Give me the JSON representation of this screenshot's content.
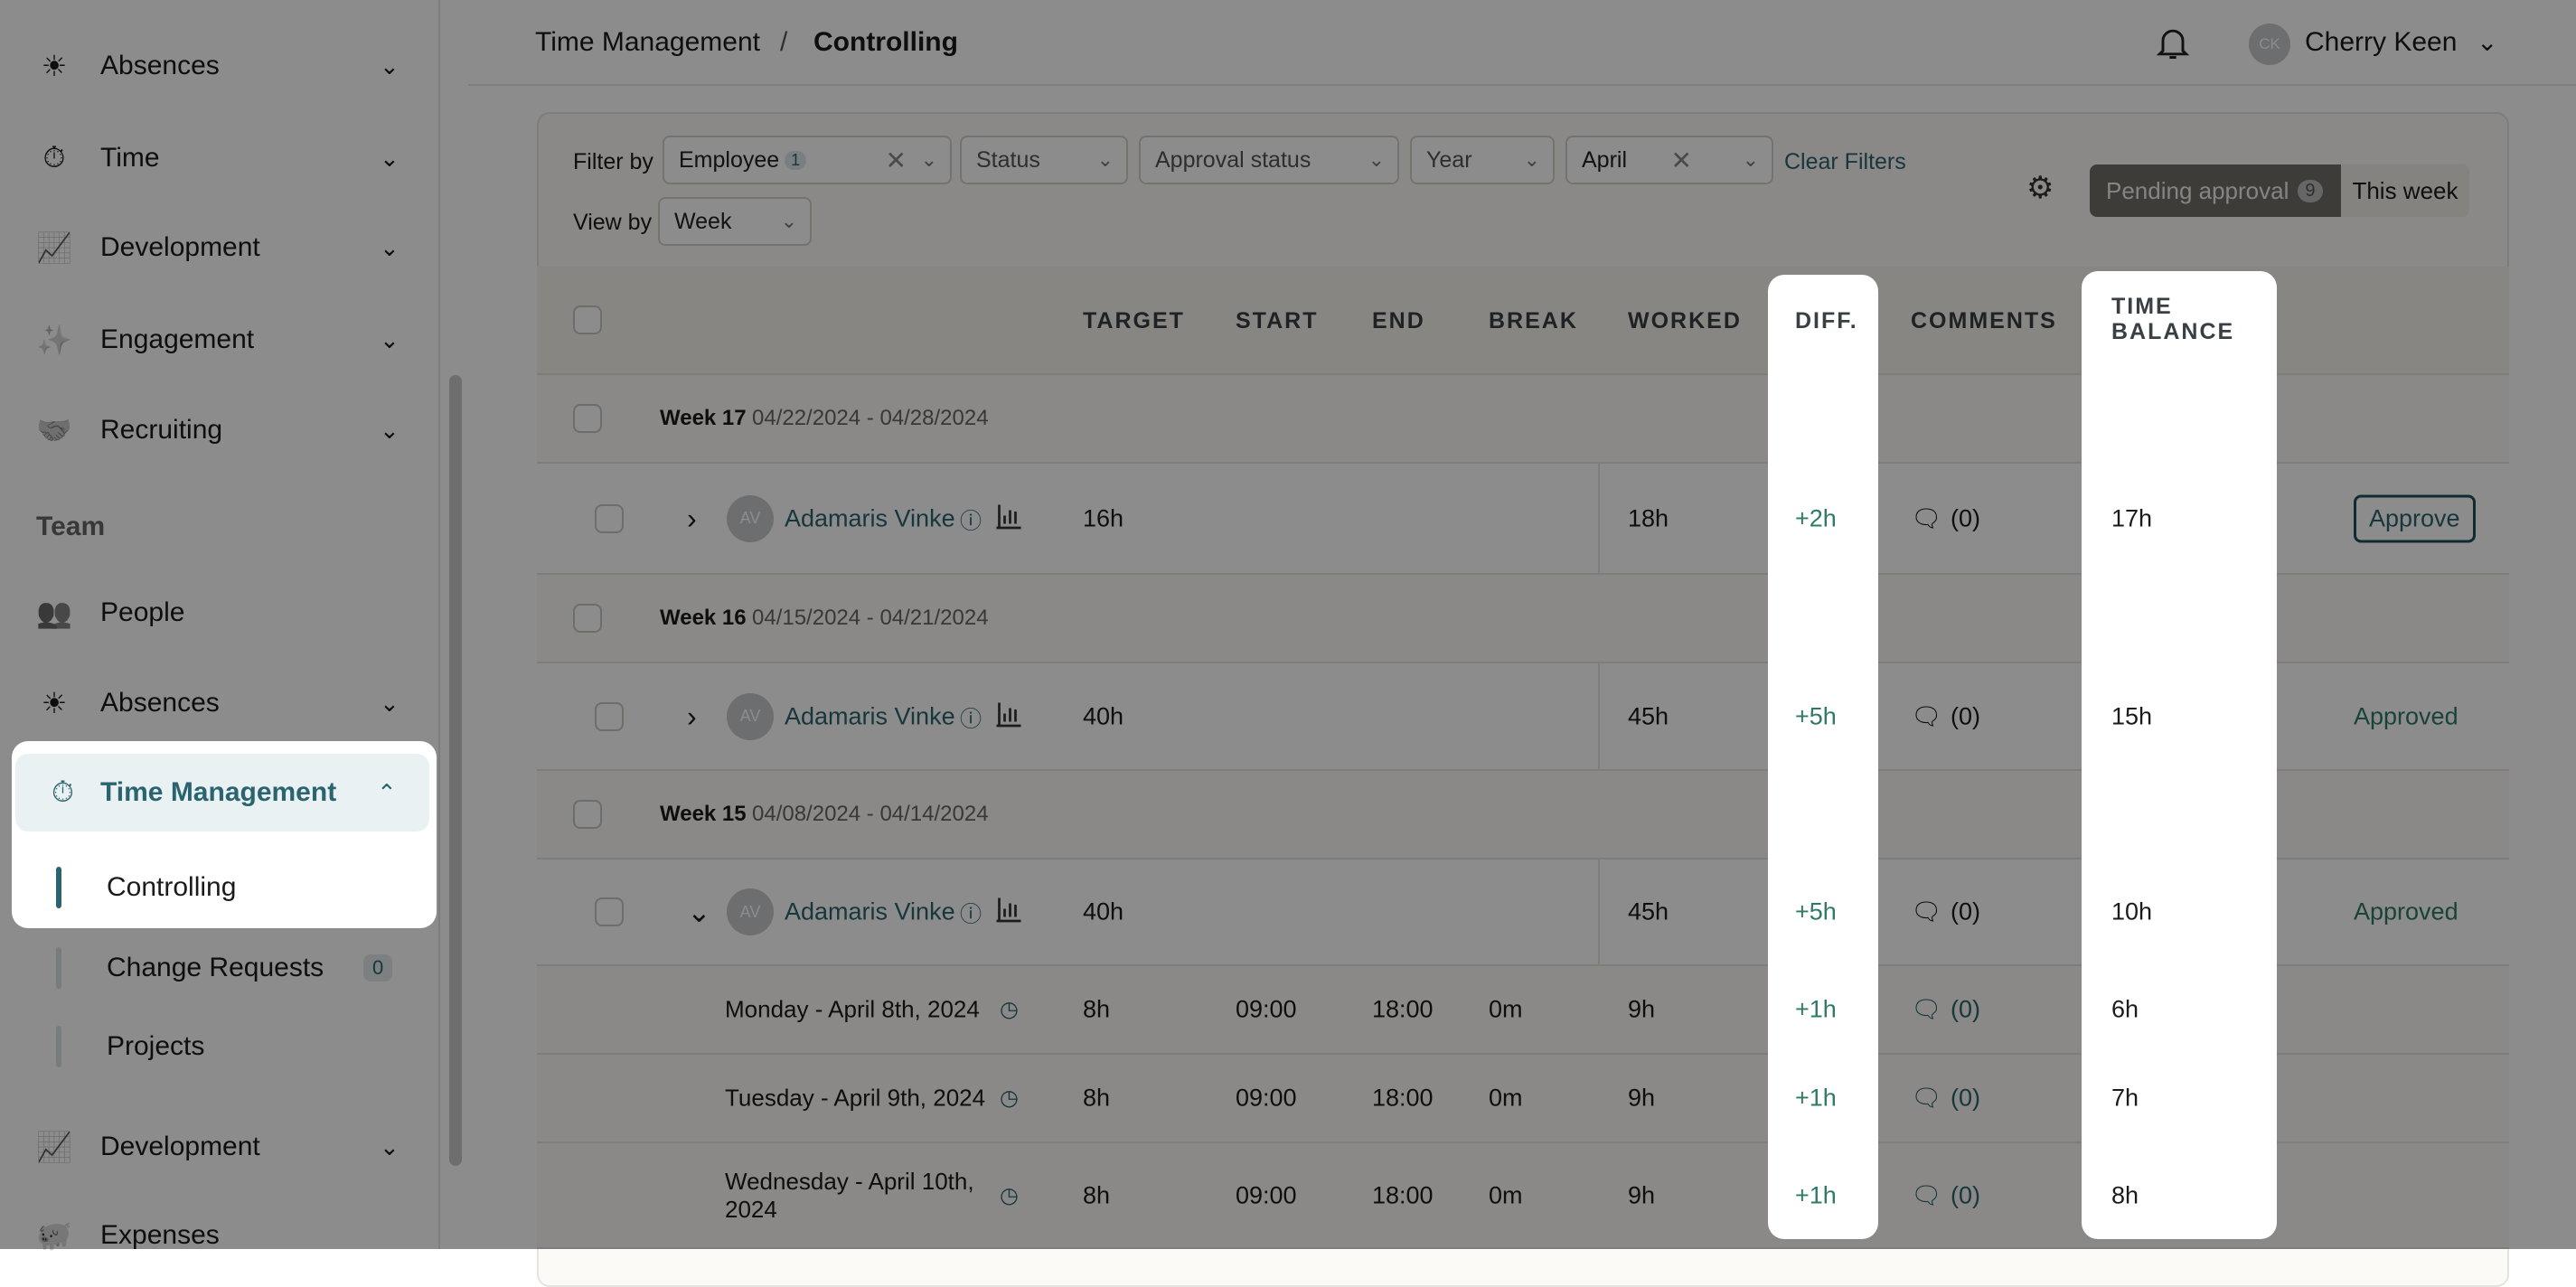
{
  "sidebar": {
    "top_items": [
      {
        "label": "Absences",
        "icon": "sun-horizon-icon"
      },
      {
        "label": "Time",
        "icon": "stopwatch-icon"
      },
      {
        "label": "Development",
        "icon": "chart-line-icon"
      },
      {
        "label": "Engagement",
        "icon": "sparkle-icon"
      },
      {
        "label": "Recruiting",
        "icon": "handshake-icon"
      }
    ],
    "section": "Team",
    "team_items": [
      {
        "label": "People",
        "icon": "people-icon"
      },
      {
        "label": "Absences",
        "icon": "sun-horizon-icon"
      }
    ],
    "active": {
      "label": "Time Management",
      "icon": "stopwatch-icon"
    },
    "sub_items": [
      {
        "label": "Controlling"
      },
      {
        "label": "Change Requests",
        "badge": "0"
      },
      {
        "label": "Projects"
      }
    ],
    "bottom_items": [
      {
        "label": "Development",
        "icon": "chart-line-icon"
      },
      {
        "label": "Expenses",
        "icon": "piggy-bank-icon"
      }
    ]
  },
  "header": {
    "crumb1": "Time Management",
    "sep": "/",
    "crumb2": "Controlling",
    "user_initials": "CK",
    "user_name": "Cherry Keen"
  },
  "filters": {
    "filter_by": "Filter by",
    "employee": "Employee",
    "employee_count": "1",
    "status": "Status",
    "approval": "Approval status",
    "year": "Year",
    "month": "April",
    "clear": "Clear Filters",
    "view_by": "View by",
    "view": "Week",
    "pending": "Pending approval",
    "pending_count": "9",
    "this_week": "This week"
  },
  "columns": {
    "target": "TARGET",
    "start": "START",
    "end": "END",
    "break": "BREAK",
    "worked": "WORKED",
    "diff": "DIFF.",
    "comments": "COMMENTS",
    "balance1": "TIME",
    "balance2": "BALANCE"
  },
  "rows": [
    {
      "week": "Week 17",
      "range": "04/22/2024 - 04/28/2024",
      "initials": "AV",
      "name": "Adamaris Vinke",
      "target": "16h",
      "worked": "18h",
      "diff": "+2h",
      "comments": "(0)",
      "balance": "17h",
      "action": "Approve"
    },
    {
      "week": "Week 16",
      "range": "04/15/2024 - 04/21/2024",
      "initials": "AV",
      "name": "Adamaris Vinke",
      "target": "40h",
      "worked": "45h",
      "diff": "+5h",
      "comments": "(0)",
      "balance": "15h",
      "action": "Approved"
    },
    {
      "week": "Week 15",
      "range": "04/08/2024 - 04/14/2024",
      "initials": "AV",
      "name": "Adamaris Vinke",
      "target": "40h",
      "worked": "45h",
      "diff": "+5h",
      "comments": "(0)",
      "balance": "10h",
      "action": "Approved"
    }
  ],
  "days": [
    {
      "label": "Monday - April 8th, 2024",
      "target": "8h",
      "start": "09:00",
      "end": "18:00",
      "break": "0m",
      "worked": "9h",
      "diff": "+1h",
      "comments": "(0)",
      "balance": "6h"
    },
    {
      "label": "Tuesday - April 9th, 2024",
      "target": "8h",
      "start": "09:00",
      "end": "18:00",
      "break": "0m",
      "worked": "9h",
      "diff": "+1h",
      "comments": "(0)",
      "balance": "7h"
    },
    {
      "label": "Wednesday - April 10th, 2024",
      "target": "8h",
      "start": "09:00",
      "end": "18:00",
      "break": "0m",
      "worked": "9h",
      "diff": "+1h",
      "comments": "(0)",
      "balance": "8h"
    }
  ],
  "colors": {
    "accent": "#2a6470",
    "positive": "#2f7a66",
    "pending_bg": "#6f6d66"
  }
}
